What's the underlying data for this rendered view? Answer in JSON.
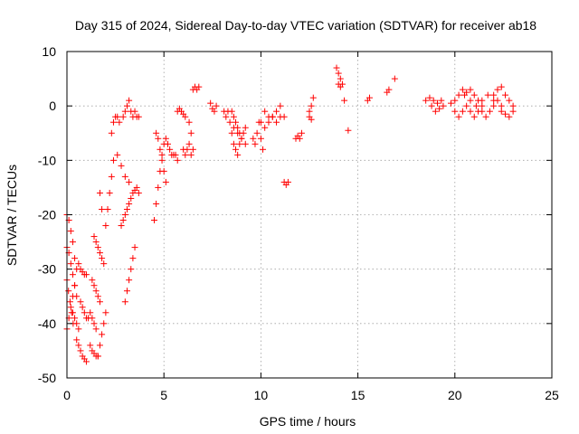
{
  "chart_data": {
    "type": "scatter",
    "title": "Day 315 of 2024, Sidereal Day-to-day VTEC variation (SDTVAR) for receiver ab18",
    "xlabel": "GPS time / hours",
    "ylabel": "SDTVAR / TECUs",
    "xlim": [
      0,
      25
    ],
    "ylim": [
      -50,
      10
    ],
    "xticks": [
      0,
      5,
      10,
      15,
      20,
      25
    ],
    "yticks": [
      -50,
      -40,
      -30,
      -20,
      -10,
      0,
      10
    ],
    "xtick_labels": [
      "0",
      "5",
      "10",
      "15",
      "20",
      "25"
    ],
    "ytick_labels": [
      "-50",
      "-40",
      "-30",
      "-20",
      "-10",
      "0",
      "10"
    ],
    "grid": true,
    "marker": "+",
    "color": "#ff0000",
    "segments": [
      {
        "x": [
          0.0,
          0.1,
          0.2,
          0.3,
          0.4,
          0.5
        ],
        "y": [
          -20,
          -21,
          -23,
          -25,
          -28,
          -30
        ]
      },
      {
        "x": [
          0.0,
          0.1,
          0.2,
          0.3,
          0.4
        ],
        "y": [
          -41,
          -39,
          -37,
          -35,
          -33
        ]
      },
      {
        "x": [
          0.0,
          0.1,
          0.2,
          0.3,
          0.4,
          0.5
        ],
        "y": [
          -26,
          -27,
          -29,
          -31,
          -33,
          -35
        ]
      },
      {
        "x": [
          0.0,
          0.08,
          0.16,
          0.24,
          0.32
        ],
        "y": [
          -32,
          -34,
          -36,
          -38,
          -40
        ]
      },
      {
        "x": [
          0.3,
          0.4,
          0.5,
          0.6
        ],
        "y": [
          -38,
          -39,
          -40,
          -41
        ]
      },
      {
        "x": [
          0.5,
          0.6,
          0.7,
          0.8,
          0.9,
          1.0
        ],
        "y": [
          -43,
          -44,
          -45,
          -46,
          -46.5,
          -47
        ]
      },
      {
        "x": [
          0.6,
          0.7,
          0.8,
          0.9,
          1.0
        ],
        "y": [
          -29,
          -30,
          -30.5,
          -31,
          -31
        ]
      },
      {
        "x": [
          0.7,
          0.8,
          0.9,
          1.0,
          1.1
        ],
        "y": [
          -36,
          -37,
          -38,
          -39,
          -39
        ]
      },
      {
        "x": [
          1.2,
          1.3,
          1.4,
          1.5,
          1.6
        ],
        "y": [
          -44,
          -45,
          -45.5,
          -46,
          -46
        ]
      },
      {
        "x": [
          1.2,
          1.3,
          1.4,
          1.5
        ],
        "y": [
          -38,
          -39,
          -40,
          -41
        ]
      },
      {
        "x": [
          1.3,
          1.4,
          1.5,
          1.6,
          1.7
        ],
        "y": [
          -32,
          -33,
          -34,
          -35,
          -36
        ]
      },
      {
        "x": [
          1.4,
          1.5,
          1.6,
          1.7,
          1.8,
          1.9
        ],
        "y": [
          -24,
          -25,
          -26,
          -27,
          -28,
          -29
        ]
      },
      {
        "x": [
          1.6,
          1.7,
          1.8,
          1.9,
          2.0
        ],
        "y": [
          -46,
          -44,
          -42,
          -40,
          -38
        ]
      },
      {
        "x": [
          1.7,
          1.8
        ],
        "y": [
          -16,
          -19
        ]
      },
      {
        "x": [
          2.0,
          2.1,
          2.2,
          2.3,
          2.4
        ],
        "y": [
          -22,
          -19,
          -16,
          -13,
          -10
        ]
      },
      {
        "x": [
          2.3,
          2.4,
          2.5,
          2.6,
          2.7
        ],
        "y": [
          -5,
          -3,
          -2,
          -2,
          -3
        ]
      },
      {
        "x": [
          2.6,
          2.8,
          3.0,
          3.2
        ],
        "y": [
          -9,
          -11,
          -13,
          -14
        ]
      },
      {
        "x": [
          2.8,
          2.9,
          3.0,
          3.1
        ],
        "y": [
          -22,
          -21,
          -20,
          -19
        ]
      },
      {
        "x": [
          2.9,
          3.0,
          3.1,
          3.2,
          3.3,
          3.4,
          3.5,
          3.6,
          3.7
        ],
        "y": [
          -2,
          -1,
          0,
          1,
          -1,
          -2,
          -1,
          -2,
          -2
        ]
      },
      {
        "x": [
          3.0,
          3.1,
          3.2,
          3.3,
          3.4,
          3.5
        ],
        "y": [
          -36,
          -34,
          -32,
          -30,
          -28,
          -26
        ]
      },
      {
        "x": [
          3.2,
          3.3,
          3.4,
          3.5,
          3.6,
          3.7
        ],
        "y": [
          -18,
          -17,
          -16,
          -15.5,
          -15,
          -16
        ]
      },
      {
        "x": [
          4.5,
          4.6,
          4.7,
          4.8,
          4.9,
          5.0
        ],
        "y": [
          -21,
          -18,
          -15,
          -12,
          -9,
          -7
        ]
      },
      {
        "x": [
          4.6,
          4.7,
          4.8,
          4.9,
          5.0,
          5.1
        ],
        "y": [
          -5,
          -6,
          -8,
          -10,
          -12,
          -14
        ]
      },
      {
        "x": [
          5.1,
          5.2,
          5.3,
          5.4,
          5.5,
          5.6,
          5.7
        ],
        "y": [
          -6,
          -7,
          -8,
          -9,
          -9,
          -9,
          -10
        ]
      },
      {
        "x": [
          5.7,
          5.8,
          5.9,
          6.0,
          6.1
        ],
        "y": [
          -1,
          -0.5,
          -1,
          -1.5,
          -2
        ]
      },
      {
        "x": [
          6.0,
          6.1,
          6.2,
          6.3,
          6.4,
          6.5
        ],
        "y": [
          -8,
          -9,
          -8,
          -7,
          -9,
          -8
        ]
      },
      {
        "x": [
          6.3,
          6.4
        ],
        "y": [
          -3,
          -5
        ]
      },
      {
        "x": [
          6.5,
          6.6,
          6.7,
          6.8
        ],
        "y": [
          3,
          3.5,
          3,
          3.5
        ]
      },
      {
        "x": [
          7.4,
          7.5,
          7.6,
          7.7
        ],
        "y": [
          0.5,
          -0.5,
          -1,
          0
        ]
      },
      {
        "x": [
          8.1,
          8.2,
          8.3
        ],
        "y": [
          -1,
          -2,
          -1
        ]
      },
      {
        "x": [
          8.4,
          8.5,
          8.6,
          8.7,
          8.8,
          8.9
        ],
        "y": [
          -3,
          -5,
          -7,
          -8,
          -9,
          -7
        ]
      },
      {
        "x": [
          8.5,
          8.6,
          8.7,
          8.8,
          8.9,
          9.0,
          9.1,
          9.2
        ],
        "y": [
          -1,
          -2,
          -3,
          -4,
          -5,
          -6,
          -5,
          -4
        ]
      },
      {
        "x": [
          8.6,
          8.8,
          9.0,
          9.2
        ],
        "y": [
          -4,
          -5,
          -6,
          -7
        ]
      },
      {
        "x": [
          9.6,
          9.7,
          9.8,
          9.9,
          10.0,
          10.1
        ],
        "y": [
          -6,
          -7,
          -5,
          -3,
          -6,
          -8
        ]
      },
      {
        "x": [
          10.0,
          10.2,
          10.4,
          10.6,
          10.8,
          11.0,
          11.2
        ],
        "y": [
          -3,
          -1,
          -2,
          -2,
          -1,
          0,
          -2
        ]
      },
      {
        "x": [
          10.2,
          10.4,
          10.6,
          10.8,
          11.0
        ],
        "y": [
          -4,
          -3,
          -2,
          -3,
          -2
        ]
      },
      {
        "x": [
          11.2,
          11.3,
          11.4
        ],
        "y": [
          -14,
          -14.5,
          -14
        ]
      },
      {
        "x": [
          11.8,
          11.9,
          12.0,
          12.1
        ],
        "y": [
          -6,
          -5.5,
          -6,
          -5
        ]
      },
      {
        "x": [
          12.5,
          12.6,
          12.7
        ],
        "y": [
          -2,
          0,
          1.5
        ]
      },
      {
        "x": [
          12.5,
          12.6
        ],
        "y": [
          -1,
          -2.5
        ]
      },
      {
        "x": [
          13.9,
          14.0,
          14.1
        ],
        "y": [
          7,
          6,
          5
        ]
      },
      {
        "x": [
          14.0,
          14.1,
          14.2
        ],
        "y": [
          4,
          3.5,
          4
        ]
      },
      {
        "x": [
          14.3,
          14.5
        ],
        "y": [
          1,
          -4.5
        ]
      },
      {
        "x": [
          15.5,
          15.6
        ],
        "y": [
          1,
          1.5
        ]
      },
      {
        "x": [
          16.5,
          16.6
        ],
        "y": [
          2.5,
          3
        ]
      },
      {
        "x": [
          16.9
        ],
        "y": [
          5
        ]
      },
      {
        "x": [
          18.5,
          18.7,
          18.9,
          19.1,
          19.3
        ],
        "y": [
          1,
          1.5,
          1,
          0.5,
          1
        ]
      },
      {
        "x": [
          18.8,
          19.0,
          19.2,
          19.4
        ],
        "y": [
          0,
          -1,
          -0.5,
          0
        ]
      },
      {
        "x": [
          19.8,
          20.0,
          20.2,
          20.4,
          20.6,
          20.8,
          21.0,
          21.2
        ],
        "y": [
          0.5,
          1,
          2,
          3,
          2.5,
          3,
          2,
          1
        ]
      },
      {
        "x": [
          20.0,
          20.2,
          20.4,
          20.6,
          20.8,
          21.0,
          21.2,
          21.4
        ],
        "y": [
          -1,
          -2,
          -1,
          0,
          -1,
          -2,
          -1,
          0
        ]
      },
      {
        "x": [
          20.5,
          20.8,
          21.1,
          21.4,
          21.7,
          22.0
        ],
        "y": [
          2,
          1,
          0,
          1,
          2,
          1
        ]
      },
      {
        "x": [
          21.4,
          21.6,
          21.8,
          22.0,
          22.2,
          22.4
        ],
        "y": [
          -1,
          -2,
          -1,
          0,
          1,
          0
        ]
      },
      {
        "x": [
          22.0,
          22.2,
          22.4,
          22.6,
          22.8,
          23.0
        ],
        "y": [
          2,
          3,
          3.5,
          2,
          1,
          0
        ]
      },
      {
        "x": [
          22.4,
          22.6,
          22.8,
          23.0
        ],
        "y": [
          -1,
          -1.5,
          -2,
          -1
        ]
      }
    ]
  }
}
